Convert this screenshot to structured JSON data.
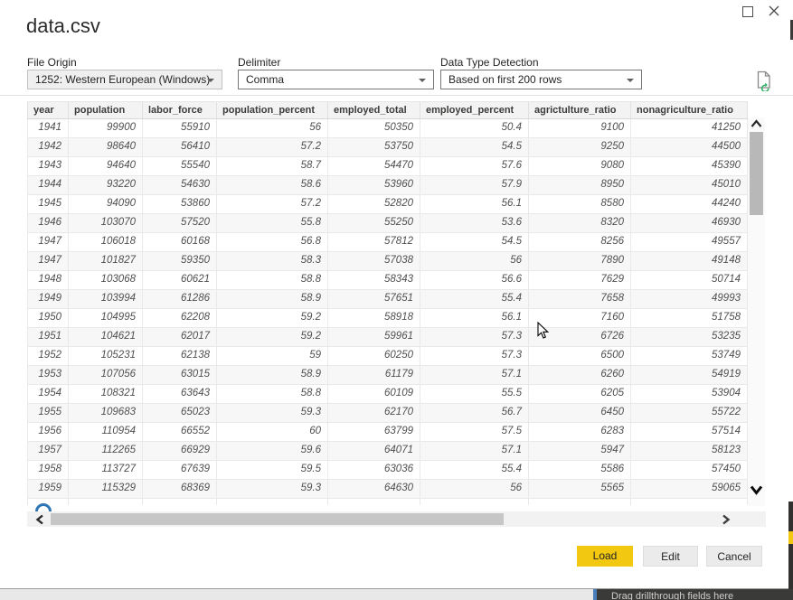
{
  "window": {
    "title": "data.csv"
  },
  "form": {
    "file_origin": {
      "label": "File Origin",
      "value": "1252: Western European (Windows)"
    },
    "delimiter": {
      "label": "Delimiter",
      "value": "Comma"
    },
    "data_type_detection": {
      "label": "Data Type Detection",
      "value": "Based on first 200 rows"
    }
  },
  "table": {
    "columns": [
      "year",
      "population",
      "labor_force",
      "population_percent",
      "employed_total",
      "employed_percent",
      "agrictulture_ratio",
      "nonagriculture_ratio"
    ],
    "rows": [
      [
        1941,
        99900,
        55910,
        56,
        50350,
        50.4,
        9100,
        41250
      ],
      [
        1942,
        98640,
        56410,
        57.2,
        53750,
        54.5,
        9250,
        44500
      ],
      [
        1943,
        94640,
        55540,
        58.7,
        54470,
        57.6,
        9080,
        45390
      ],
      [
        1944,
        93220,
        54630,
        58.6,
        53960,
        57.9,
        8950,
        45010
      ],
      [
        1945,
        94090,
        53860,
        57.2,
        52820,
        56.1,
        8580,
        44240
      ],
      [
        1946,
        103070,
        57520,
        55.8,
        55250,
        53.6,
        8320,
        46930
      ],
      [
        1947,
        106018,
        60168,
        56.8,
        57812,
        54.5,
        8256,
        49557
      ],
      [
        1947,
        101827,
        59350,
        58.3,
        57038,
        56,
        7890,
        49148
      ],
      [
        1948,
        103068,
        60621,
        58.8,
        58343,
        56.6,
        7629,
        50714
      ],
      [
        1949,
        103994,
        61286,
        58.9,
        57651,
        55.4,
        7658,
        49993
      ],
      [
        1950,
        104995,
        62208,
        59.2,
        58918,
        56.1,
        7160,
        51758
      ],
      [
        1951,
        104621,
        62017,
        59.2,
        59961,
        57.3,
        6726,
        53235
      ],
      [
        1952,
        105231,
        62138,
        59,
        60250,
        57.3,
        6500,
        53749
      ],
      [
        1953,
        107056,
        63015,
        58.9,
        61179,
        57.1,
        6260,
        54919
      ],
      [
        1954,
        108321,
        63643,
        58.8,
        60109,
        55.5,
        6205,
        53904
      ],
      [
        1955,
        109683,
        65023,
        59.3,
        62170,
        56.7,
        6450,
        55722
      ],
      [
        1956,
        110954,
        66552,
        60,
        63799,
        57.5,
        6283,
        57514
      ],
      [
        1957,
        112265,
        66929,
        59.6,
        64071,
        57.1,
        5947,
        58123
      ],
      [
        1958,
        113727,
        67639,
        59.5,
        63036,
        55.4,
        5586,
        57450
      ],
      [
        1959,
        115329,
        68369,
        59.3,
        64630,
        56,
        5565,
        59065
      ]
    ]
  },
  "footer": {
    "load_label": "Load",
    "edit_label": "Edit",
    "cancel_label": "Cancel"
  },
  "underlying_app": {
    "drillthrough_hint": "Drag drillthrough fields here"
  },
  "icons": {
    "maximize": "window-maximize",
    "close": "window-close",
    "refresh_preview": "file-refresh",
    "dropdown_caret": "caret-down",
    "scroll_chevrons": "chevron-up/down/left/right",
    "loading_spinner": "blue-arc",
    "mouse_cursor": "arrow-pointer"
  },
  "colors": {
    "accent_yellow": "#F2C811",
    "spinner_blue": "#2E75B6",
    "dark_panel": "#3A3A38"
  }
}
